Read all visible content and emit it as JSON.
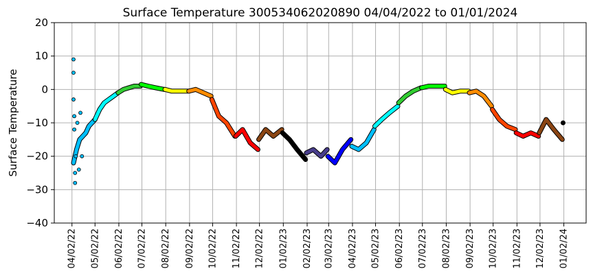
{
  "chart_data": {
    "type": "scatter",
    "title": "Surface Temperature 300534062020890  04/04/2022 to 01/01/2024",
    "xlabel": "",
    "ylabel": "Surface Temperature",
    "ylim": [
      -40,
      20
    ],
    "yticks": [
      "20",
      "10",
      "0",
      "−10",
      "−20",
      "−30",
      "−40"
    ],
    "xlim": [
      "2022-03-10",
      "2024-01-31"
    ],
    "xticks": [
      "04/02/22",
      "05/02/22",
      "06/02/22",
      "07/02/22",
      "08/02/22",
      "09/02/22",
      "10/02/22",
      "11/02/22",
      "12/02/22",
      "01/02/23",
      "02/02/23",
      "03/02/23",
      "04/02/23",
      "05/02/23",
      "06/02/23",
      "07/02/23",
      "08/02/23",
      "09/02/23",
      "10/02/23",
      "11/02/23",
      "12/02/23",
      "01/02/24"
    ],
    "grid": true,
    "colors": {
      "Apr": "#00bfff",
      "May": "#00ffff",
      "Jun": "#32cd32",
      "Jul": "#00ff00",
      "Aug": "#ffff00",
      "Sep": "#ff8c00",
      "Oct": "#ff4500",
      "Nov": "#ff0000",
      "Dec": "#8b4513",
      "Jan": "#000000",
      "Feb": "#483d8b",
      "Mar": "#0000ff"
    },
    "series": [
      {
        "month": "Apr",
        "color": "#00bfff",
        "x": [
          "2022-04-04",
          "2022-04-08",
          "2022-04-12",
          "2022-04-16",
          "2022-04-20",
          "2022-04-24",
          "2022-04-28",
          "2022-05-02"
        ],
        "y": [
          -22,
          -18,
          -15,
          -14,
          -13,
          -11,
          -10,
          -9
        ]
      },
      {
        "month": "May",
        "color": "#00ffff",
        "x": [
          "2022-05-02",
          "2022-05-08",
          "2022-05-14",
          "2022-05-20",
          "2022-05-26",
          "2022-06-01"
        ],
        "y": [
          -9,
          -6,
          -4,
          -3,
          -2,
          -1
        ]
      },
      {
        "month": "Jun",
        "color": "#32cd32",
        "x": [
          "2022-06-01",
          "2022-06-08",
          "2022-06-15",
          "2022-06-22",
          "2022-06-30"
        ],
        "y": [
          -1,
          0,
          0.5,
          1,
          1
        ]
      },
      {
        "month": "Jul",
        "color": "#00ff00",
        "x": [
          "2022-07-01",
          "2022-07-10",
          "2022-07-20",
          "2022-07-31"
        ],
        "y": [
          1.5,
          1,
          0.5,
          0
        ]
      },
      {
        "month": "Aug",
        "color": "#ffff00",
        "x": [
          "2022-08-01",
          "2022-08-10",
          "2022-08-20",
          "2022-08-31"
        ],
        "y": [
          0,
          -0.5,
          -0.5,
          -0.5
        ]
      },
      {
        "month": "Sep",
        "color": "#ff8c00",
        "x": [
          "2022-09-01",
          "2022-09-10",
          "2022-09-20",
          "2022-09-30"
        ],
        "y": [
          -0.5,
          0,
          -1,
          -2
        ]
      },
      {
        "month": "Oct",
        "color": "#ff4500",
        "x": [
          "2022-10-01",
          "2022-10-10",
          "2022-10-20",
          "2022-10-31"
        ],
        "y": [
          -3,
          -8,
          -10,
          -14
        ]
      },
      {
        "month": "Nov",
        "color": "#ff0000",
        "x": [
          "2022-11-01",
          "2022-11-10",
          "2022-11-20",
          "2022-11-30"
        ],
        "y": [
          -14,
          -12,
          -16,
          -18
        ]
      },
      {
        "month": "Dec",
        "color": "#8b4513",
        "x": [
          "2022-12-01",
          "2022-12-10",
          "2022-12-20",
          "2022-12-31"
        ],
        "y": [
          -15,
          -12,
          -14,
          -12
        ]
      },
      {
        "month": "Jan",
        "color": "#000000",
        "x": [
          "2023-01-01",
          "2023-01-10",
          "2023-01-20",
          "2023-01-31"
        ],
        "y": [
          -13,
          -15,
          -18,
          -21
        ]
      },
      {
        "month": "Feb",
        "color": "#483d8b",
        "x": [
          "2023-02-01",
          "2023-02-10",
          "2023-02-20",
          "2023-02-28"
        ],
        "y": [
          -19,
          -18,
          -20,
          -18
        ]
      },
      {
        "month": "Mar",
        "color": "#0000ff",
        "x": [
          "2023-03-01",
          "2023-03-10",
          "2023-03-20",
          "2023-03-31"
        ],
        "y": [
          -20,
          -22,
          -18,
          -15
        ]
      },
      {
        "month": "Apr",
        "color": "#00bfff",
        "x": [
          "2023-04-01",
          "2023-04-10",
          "2023-04-20",
          "2023-04-30"
        ],
        "y": [
          -17,
          -18,
          -16,
          -12
        ]
      },
      {
        "month": "May",
        "color": "#00ffff",
        "x": [
          "2023-05-01",
          "2023-05-10",
          "2023-05-20",
          "2023-05-31"
        ],
        "y": [
          -11,
          -9,
          -7,
          -5
        ]
      },
      {
        "month": "Jun",
        "color": "#32cd32",
        "x": [
          "2023-06-01",
          "2023-06-10",
          "2023-06-20",
          "2023-06-30"
        ],
        "y": [
          -4,
          -2,
          -0.5,
          0.5
        ]
      },
      {
        "month": "Jul",
        "color": "#00ff00",
        "x": [
          "2023-07-01",
          "2023-07-10",
          "2023-07-20",
          "2023-07-31"
        ],
        "y": [
          0.5,
          1,
          1,
          1
        ]
      },
      {
        "month": "Aug",
        "color": "#ffff00",
        "x": [
          "2023-08-01",
          "2023-08-10",
          "2023-08-20",
          "2023-08-31"
        ],
        "y": [
          0,
          -1,
          -0.5,
          -0.5
        ]
      },
      {
        "month": "Sep",
        "color": "#ff8c00",
        "x": [
          "2023-09-01",
          "2023-09-10",
          "2023-09-20",
          "2023-09-30"
        ],
        "y": [
          -1,
          -0.5,
          -2,
          -5
        ]
      },
      {
        "month": "Oct",
        "color": "#ff4500",
        "x": [
          "2023-10-01",
          "2023-10-10",
          "2023-10-20",
          "2023-10-31"
        ],
        "y": [
          -6,
          -9,
          -11,
          -12
        ]
      },
      {
        "month": "Nov",
        "color": "#ff0000",
        "x": [
          "2023-11-01",
          "2023-11-10",
          "2023-11-20",
          "2023-11-30"
        ],
        "y": [
          -13,
          -14,
          -13,
          -14
        ]
      },
      {
        "month": "Dec",
        "color": "#8b4513",
        "x": [
          "2023-12-01",
          "2023-12-10",
          "2023-12-20",
          "2023-12-31"
        ],
        "y": [
          -13,
          -9,
          -12,
          -15
        ]
      },
      {
        "month": "Jan",
        "color": "#000000",
        "x": [
          "2024-01-01"
        ],
        "y": [
          -10
        ]
      }
    ],
    "scatter_points": [
      {
        "x": "2022-04-04",
        "y": 9
      },
      {
        "x": "2022-04-04",
        "y": 5
      },
      {
        "x": "2022-04-04",
        "y": -3
      },
      {
        "x": "2022-04-05",
        "y": -8
      },
      {
        "x": "2022-04-05",
        "y": -12
      },
      {
        "x": "2022-04-06",
        "y": -28
      },
      {
        "x": "2022-04-06",
        "y": -25
      },
      {
        "x": "2022-04-07",
        "y": -20
      },
      {
        "x": "2022-04-09",
        "y": -10
      },
      {
        "x": "2022-04-11",
        "y": -24
      },
      {
        "x": "2022-04-13",
        "y": -7
      },
      {
        "x": "2022-04-15",
        "y": -20
      }
    ]
  }
}
